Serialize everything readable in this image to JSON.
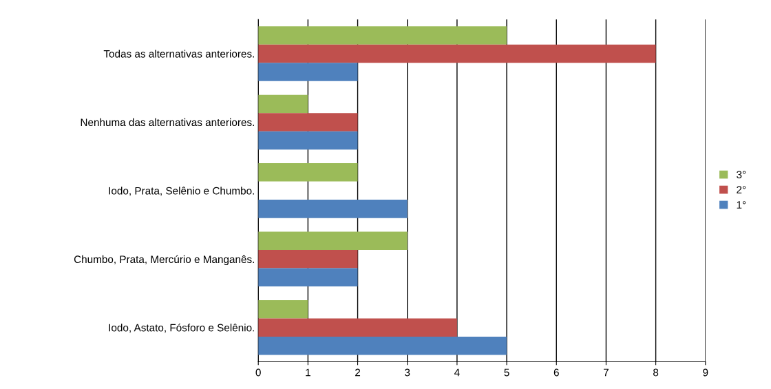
{
  "chart_data": {
    "type": "bar",
    "orientation": "horizontal",
    "categories": [
      "Todas as alternativas anteriores.",
      "Nenhuma das alternativas anteriores.",
      "Iodo, Prata, Selênio e Chumbo.",
      "Chumbo, Prata, Mercúrio e Manganês.",
      "Iodo, Astato, Fósforo e Selênio."
    ],
    "series": [
      {
        "name": "3°",
        "color": "#9bbb59",
        "values": [
          5,
          1,
          2,
          3,
          1
        ]
      },
      {
        "name": "2°",
        "color": "#c0504d",
        "values": [
          8,
          2,
          0,
          2,
          4
        ]
      },
      {
        "name": "1°",
        "color": "#4f81bd",
        "values": [
          2,
          2,
          3,
          2,
          5
        ]
      }
    ],
    "xlim": [
      0,
      9
    ],
    "xticks": [
      0,
      1,
      2,
      3,
      4,
      5,
      6,
      7,
      8,
      9
    ],
    "grid": "x",
    "legend": "right"
  }
}
